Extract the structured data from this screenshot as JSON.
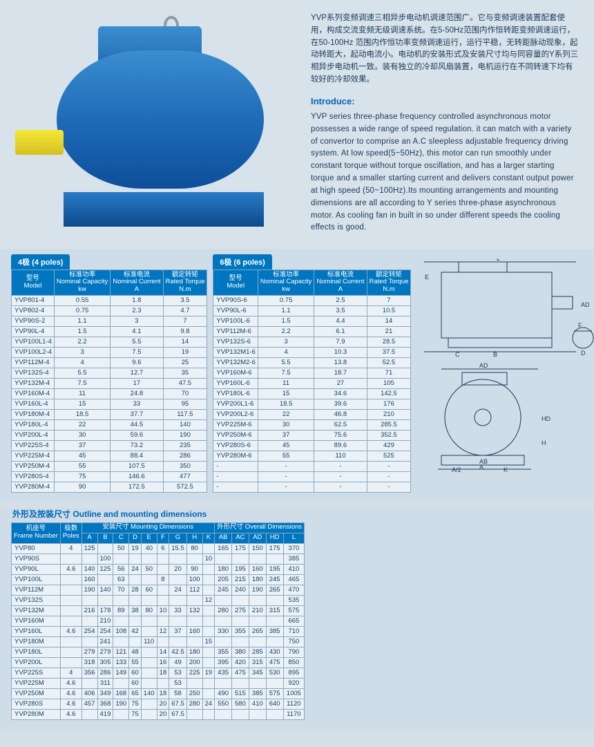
{
  "intro_cn": "YVP系列变频调速三相异步电动机调速范围广。它与变频调速装置配套使用，构成交流变频无级调速系统。在5-50Hz范围内作恒转距变频调速运行，在50-100Hz 范围内作恒功率变频调速运行，运行平稳，无转距脉动现象，起动转距大，起动电流小。电动机的安装形式及安装尺寸均与同容量的Y系列三相异步电动机一致。装有独立的冷却风扇装置，电机运行在不同转速下均有较好的冷却效果。",
  "intro_heading": "Introduce:",
  "intro_en": "YVP series three-phase frequency controlled asynchronous motor possesses a wide range of speed regulation. it can match with a variety of convertor to comprise an A.C sleepless adjustable frequency driving system. At low speed(5~50Hz), this motor can run smoothly under constant torque without torque oscillation, and has a larger starting torque and a smaller starting current and delivers constant output power at high speed (50~100Hz).Its mounting arrangements and mounting dimensions are all according to Y series three-phase asynchronous motor. As cooling fan in built in so under different speeds the cooling effects is good.",
  "poles4_label": "4极 (4 poles)",
  "poles6_label": "6极 (6 poles)",
  "col_model_cn": "型号",
  "col_model_en": "Model",
  "col_cap_cn": "标准功率",
  "col_cap_en": "Nominal Capacity",
  "col_cap_unit": "kw",
  "col_cur_cn": "标准电流",
  "col_cur_en": "Nominal Current",
  "col_cur_unit": "A",
  "col_tor_cn": "额定转矩",
  "col_tor_en": "Rated Torque",
  "col_tor_unit": "N.m",
  "poles4": [
    [
      "YVP801-4",
      "0.55",
      "1.8",
      "3.5"
    ],
    [
      "YVP802-4",
      "0.75",
      "2.3",
      "4.7"
    ],
    [
      "YVP90S-2",
      "1.1",
      "3",
      "7"
    ],
    [
      "YVP90L-4",
      "1.5",
      "4.1",
      "9.8"
    ],
    [
      "YVP100L1-4",
      "2.2",
      "5.5",
      "14"
    ],
    [
      "YVP100L2-4",
      "3",
      "7.5",
      "19"
    ],
    [
      "YVP112M-4",
      "4",
      "9.6",
      "25"
    ],
    [
      "YVP132S-4",
      "5.5",
      "12.7",
      "35"
    ],
    [
      "YVP132M-4",
      "7.5",
      "17",
      "47.5"
    ],
    [
      "YVP160M-4",
      "11",
      "24.8",
      "70"
    ],
    [
      "YVP160L-4",
      "15",
      "33",
      "95"
    ],
    [
      "YVP180M-4",
      "18.5",
      "37.7",
      "117.5"
    ],
    [
      "YVP180L-4",
      "22",
      "44.5",
      "140"
    ],
    [
      "YVP200L-4",
      "30",
      "59.6",
      "190"
    ],
    [
      "YVP225S-4",
      "37",
      "73.2",
      "235"
    ],
    [
      "YVP225M-4",
      "45",
      "88.4",
      "286"
    ],
    [
      "YVP250M-4",
      "55",
      "107.5",
      "350"
    ],
    [
      "YVP280S-4",
      "75",
      "146.6",
      "477"
    ],
    [
      "YVP280M-4",
      "90",
      "172.5",
      "572.5"
    ]
  ],
  "poles6": [
    [
      "YVP90S-6",
      "0.75",
      "2.5",
      "7"
    ],
    [
      "YVP90L-6",
      "1.1",
      "3.5",
      "10.5"
    ],
    [
      "YVP100L-6",
      "1.5",
      "4.4",
      "14"
    ],
    [
      "YVP112M-6",
      "2.2",
      "6.1",
      "21"
    ],
    [
      "YVP132S-6",
      "3",
      "7.9",
      "28.5"
    ],
    [
      "YVP132M1-6",
      "4",
      "10.3",
      "37.5"
    ],
    [
      "YVP132M2-6",
      "5.5",
      "13.8",
      "52.5"
    ],
    [
      "YVP160M-6",
      "7.5",
      "18.7",
      "71"
    ],
    [
      "YVP160L-6",
      "11",
      "27",
      "105"
    ],
    [
      "YVP180L-6",
      "15",
      "34.6",
      "142.5"
    ],
    [
      "YVP200L1-6",
      "18.5",
      "39.6",
      "176"
    ],
    [
      "YVP200L2-6",
      "22",
      "46.8",
      "210"
    ],
    [
      "YVP225M-6",
      "30",
      "62.5",
      "285.5"
    ],
    [
      "YVP250M-6",
      "37",
      "75.6",
      "352.5"
    ],
    [
      "YVP280S-6",
      "45",
      "89.6",
      "429"
    ],
    [
      "YVP280M-6",
      "55",
      "110",
      "525"
    ],
    [
      "-",
      "-",
      "-",
      "-"
    ],
    [
      "-",
      "-",
      "-",
      "-"
    ],
    [
      "-",
      "-",
      "-",
      "-"
    ]
  ],
  "dim_title": "外形及按装尺寸 Outline and mounting dimensions",
  "dim_h_frame_cn": "机座号",
  "dim_h_frame_en": "Frame Number",
  "dim_h_poles_cn": "极数",
  "dim_h_poles_en": "Poles",
  "dim_h_mount": "安装尺寸 Mounting Dimensions",
  "dim_h_overall": "外形尺寸 Overall Dimensions",
  "dim_cols": [
    "A",
    "B",
    "C",
    "D",
    "E",
    "F",
    "G",
    "H",
    "K",
    "AB",
    "AC",
    "AD",
    "HD",
    "L"
  ],
  "dim_rows": [
    {
      "frame": "YVP80",
      "poles": "4",
      "A": "125",
      "B": "",
      "C": "50",
      "D": "19",
      "E": "40",
      "F": "6",
      "G": "15.5",
      "H": "80",
      "K": "",
      "AB": "165",
      "AC": "175",
      "AD": "150",
      "HD": "175",
      "L": "370"
    },
    {
      "frame": "YVP90S",
      "poles": "",
      "A": "",
      "B": "100",
      "C": "",
      "D": "",
      "E": "",
      "F": "",
      "G": "",
      "H": "",
      "K": "10",
      "AB": "",
      "AC": "",
      "AD": "",
      "HD": "",
      "L": "385"
    },
    {
      "frame": "YVP90L",
      "poles": "4.6",
      "A": "140",
      "B": "125",
      "C": "56",
      "D": "24",
      "E": "50",
      "F": "",
      "G": "20",
      "H": "90",
      "K": "",
      "AB": "180",
      "AC": "195",
      "AD": "160",
      "HD": "195",
      "L": "410"
    },
    {
      "frame": "YVP100L",
      "poles": "",
      "A": "160",
      "B": "",
      "C": "63",
      "D": "",
      "E": "",
      "F": "8",
      "G": "",
      "H": "100",
      "K": "",
      "AB": "205",
      "AC": "215",
      "AD": "180",
      "HD": "245",
      "L": "465"
    },
    {
      "frame": "YVP112M",
      "poles": "",
      "A": "190",
      "B": "140",
      "C": "70",
      "D": "28",
      "E": "60",
      "F": "",
      "G": "24",
      "H": "112",
      "K": "",
      "AB": "245",
      "AC": "240",
      "AD": "190",
      "HD": "265",
      "L": "470"
    },
    {
      "frame": "YVP132S",
      "poles": "",
      "A": "",
      "B": "",
      "C": "",
      "D": "",
      "E": "",
      "F": "",
      "G": "",
      "H": "",
      "K": "12",
      "AB": "",
      "AC": "",
      "AD": "",
      "HD": "",
      "L": "535"
    },
    {
      "frame": "YVP132M",
      "poles": "",
      "A": "216",
      "B": "178",
      "C": "89",
      "D": "38",
      "E": "80",
      "F": "10",
      "G": "33",
      "H": "132",
      "K": "",
      "AB": "280",
      "AC": "275",
      "AD": "210",
      "HD": "315",
      "L": "575"
    },
    {
      "frame": "YVP160M",
      "poles": "",
      "A": "",
      "B": "210",
      "C": "",
      "D": "",
      "E": "",
      "F": "",
      "G": "",
      "H": "",
      "K": "",
      "AB": "",
      "AC": "",
      "AD": "",
      "HD": "",
      "L": "665"
    },
    {
      "frame": "YVP160L",
      "poles": "4.6",
      "A": "254",
      "B": "254",
      "C": "108",
      "D": "42",
      "E": "",
      "F": "12",
      "G": "37",
      "H": "160",
      "K": "",
      "AB": "330",
      "AC": "355",
      "AD": "265",
      "HD": "385",
      "L": "710"
    },
    {
      "frame": "YVP180M",
      "poles": "",
      "A": "",
      "B": "241",
      "C": "",
      "D": "",
      "E": "110",
      "F": "",
      "G": "",
      "H": "",
      "K": "15",
      "AB": "",
      "AC": "",
      "AD": "",
      "HD": "",
      "L": "750"
    },
    {
      "frame": "YVP180L",
      "poles": "",
      "A": "279",
      "B": "279",
      "C": "121",
      "D": "48",
      "E": "",
      "F": "14",
      "G": "42.5",
      "H": "180",
      "K": "",
      "AB": "355",
      "AC": "380",
      "AD": "285",
      "HD": "430",
      "L": "790"
    },
    {
      "frame": "YVP200L",
      "poles": "",
      "A": "318",
      "B": "305",
      "C": "133",
      "D": "55",
      "E": "",
      "F": "16",
      "G": "49",
      "H": "200",
      "K": "",
      "AB": "395",
      "AC": "420",
      "AD": "315",
      "HD": "475",
      "L": "850"
    },
    {
      "frame": "YVP225S",
      "poles": "4",
      "A": "356",
      "B": "286",
      "C": "149",
      "D": "60",
      "E": "",
      "F": "18",
      "G": "53",
      "H": "225",
      "K": "19",
      "AB": "435",
      "AC": "475",
      "AD": "345",
      "HD": "530",
      "L": "895"
    },
    {
      "frame": "YVP225M",
      "poles": "4.6",
      "A": "",
      "B": "311",
      "C": "",
      "D": "60",
      "E": "",
      "F": "",
      "G": "53",
      "H": "",
      "K": "",
      "AB": "",
      "AC": "",
      "AD": "",
      "HD": "",
      "L": "920"
    },
    {
      "frame": "YVP250M",
      "poles": "4.6",
      "A": "406",
      "B": "349",
      "C": "168",
      "D": "65",
      "E": "140",
      "F": "18",
      "G": "58",
      "H": "250",
      "K": "",
      "AB": "490",
      "AC": "515",
      "AD": "385",
      "HD": "575",
      "L": "1005"
    },
    {
      "frame": "YVP280S",
      "poles": "4.6",
      "A": "457",
      "B": "368",
      "C": "190",
      "D": "75",
      "E": "",
      "F": "20",
      "G": "67.5",
      "H": "280",
      "K": "24",
      "AB": "550",
      "AC": "580",
      "AD": "410",
      "HD": "640",
      "L": "1120"
    },
    {
      "frame": "YVP280M",
      "poles": "4.6",
      "A": "",
      "B": "419",
      "C": "",
      "D": "75",
      "E": "",
      "F": "20",
      "G": "67.5",
      "H": "",
      "K": "",
      "AB": "",
      "AC": "",
      "AD": "",
      "HD": "",
      "L": "1170"
    }
  ],
  "colors": {
    "header_bg": "#0076c0",
    "page_bg": "#d5dfe8",
    "cell_bg": "#eaf2f8",
    "border": "#8aa8c0",
    "accent": "#0066b3"
  }
}
